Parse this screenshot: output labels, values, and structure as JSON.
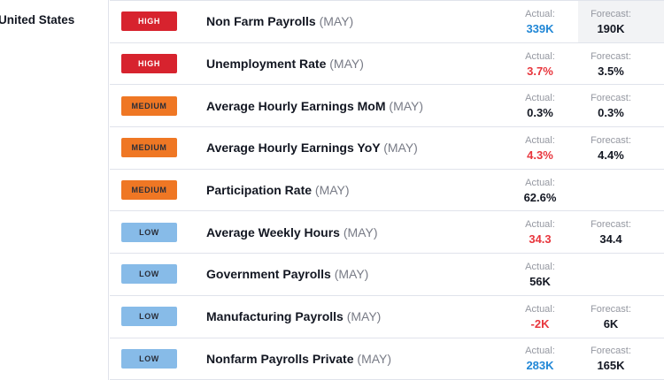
{
  "region": {
    "label": "United States"
  },
  "labels": {
    "actual": "Actual:",
    "forecast": "Forecast:"
  },
  "colors": {
    "divider": "#e0e3eb",
    "neutral_dark": "#131722",
    "label_gray": "#9598a1",
    "period_gray": "#787b86",
    "positive_blue": "#2187d6",
    "negative_red": "#e8363d",
    "high_badge": "#d7232e",
    "medium_badge": "#ef7724",
    "low_badge": "#87bbe8",
    "forecast_cell_highlight": "#f2f3f5"
  },
  "rows": [
    {
      "importance": "HIGH",
      "importance_level": "high",
      "event": "Non Farm Payrolls",
      "period": "(MAY)",
      "actual": "339K",
      "actual_color": "blue",
      "forecast": "190K",
      "forecast_highlight": true
    },
    {
      "importance": "HIGH",
      "importance_level": "high",
      "event": "Unemployment Rate",
      "period": "(MAY)",
      "actual": "3.7%",
      "actual_color": "red",
      "forecast": "3.5%",
      "forecast_highlight": false
    },
    {
      "importance": "MEDIUM",
      "importance_level": "medium",
      "event": "Average Hourly Earnings MoM",
      "period": "(MAY)",
      "actual": "0.3%",
      "actual_color": "dark",
      "forecast": "0.3%",
      "forecast_highlight": false
    },
    {
      "importance": "MEDIUM",
      "importance_level": "medium",
      "event": "Average Hourly Earnings YoY",
      "period": "(MAY)",
      "actual": "4.3%",
      "actual_color": "red",
      "forecast": "4.4%",
      "forecast_highlight": false
    },
    {
      "importance": "MEDIUM",
      "importance_level": "medium",
      "event": "Participation Rate",
      "period": "(MAY)",
      "actual": "62.6%",
      "actual_color": "dark",
      "forecast": null,
      "forecast_highlight": false
    },
    {
      "importance": "LOW",
      "importance_level": "low",
      "event": "Average Weekly Hours",
      "period": "(MAY)",
      "actual": "34.3",
      "actual_color": "red",
      "forecast": "34.4",
      "forecast_highlight": false
    },
    {
      "importance": "LOW",
      "importance_level": "low",
      "event": "Government Payrolls",
      "period": "(MAY)",
      "actual": "56K",
      "actual_color": "dark",
      "forecast": null,
      "forecast_highlight": false
    },
    {
      "importance": "LOW",
      "importance_level": "low",
      "event": "Manufacturing Payrolls",
      "period": "(MAY)",
      "actual": "-2K",
      "actual_color": "red",
      "forecast": "6K",
      "forecast_highlight": false
    },
    {
      "importance": "LOW",
      "importance_level": "low",
      "event": "Nonfarm Payrolls Private",
      "period": "(MAY)",
      "actual": "283K",
      "actual_color": "blue",
      "forecast": "165K",
      "forecast_highlight": false
    }
  ]
}
